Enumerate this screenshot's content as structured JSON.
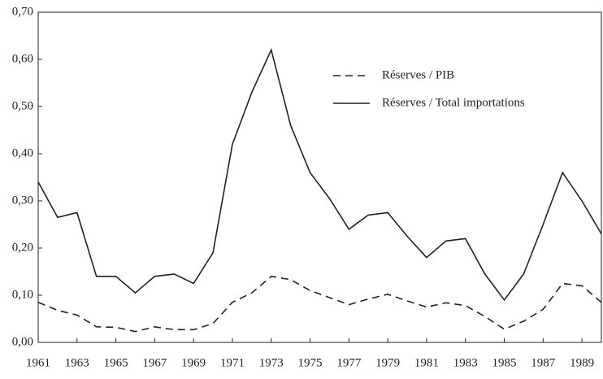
{
  "chart_data": {
    "type": "line",
    "x": [
      1961,
      1962,
      1963,
      1964,
      1965,
      1966,
      1967,
      1968,
      1969,
      1970,
      1971,
      1972,
      1973,
      1974,
      1975,
      1976,
      1977,
      1978,
      1979,
      1980,
      1981,
      1982,
      1983,
      1984,
      1985,
      1986,
      1987,
      1988,
      1989,
      1990
    ],
    "series": [
      {
        "name": "Réserves / PIB",
        "color": "#222222",
        "dash": true,
        "values": [
          0.085,
          0.068,
          0.058,
          0.033,
          0.032,
          0.023,
          0.033,
          0.027,
          0.027,
          0.04,
          0.085,
          0.105,
          0.14,
          0.133,
          0.11,
          0.095,
          0.08,
          0.092,
          0.102,
          0.088,
          0.075,
          0.084,
          0.078,
          0.055,
          0.028,
          0.045,
          0.07,
          0.125,
          0.12,
          0.085
        ]
      },
      {
        "name": "Réserves / Total importations",
        "color": "#222222",
        "dash": false,
        "values": [
          0.34,
          0.265,
          0.275,
          0.14,
          0.14,
          0.105,
          0.14,
          0.145,
          0.125,
          0.19,
          0.42,
          0.53,
          0.62,
          0.46,
          0.36,
          0.305,
          0.24,
          0.27,
          0.275,
          0.225,
          0.18,
          0.215,
          0.22,
          0.145,
          0.09,
          0.145,
          0.25,
          0.36,
          0.3,
          0.23
        ]
      }
    ],
    "xlim": [
      1961,
      1990
    ],
    "xticks": [
      1961,
      1963,
      1965,
      1967,
      1969,
      1971,
      1973,
      1975,
      1977,
      1979,
      1981,
      1983,
      1985,
      1987,
      1989
    ],
    "ylim": [
      0,
      0.7
    ],
    "yticks": [
      {
        "value": 0,
        "label": "0,00"
      },
      {
        "value": 0.1,
        "label": "0,10"
      },
      {
        "value": 0.2,
        "label": "0,20"
      },
      {
        "value": 0.3,
        "label": "0,30"
      },
      {
        "value": 0.4,
        "label": "0,40"
      },
      {
        "value": 0.5,
        "label": "0,50"
      },
      {
        "value": 0.6,
        "label": "0,60"
      },
      {
        "value": 0.7,
        "label": "0,70"
      }
    ]
  }
}
